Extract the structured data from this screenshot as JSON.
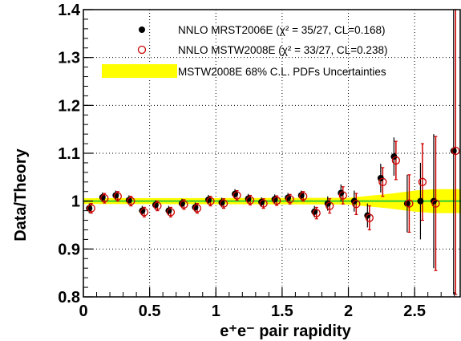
{
  "chart_data": {
    "type": "scatter",
    "xlabel": "e⁺e⁻ pair rapidity",
    "ylabel": "Data/Theory",
    "xlim": [
      0,
      2.85
    ],
    "ylim": [
      0.8,
      1.4
    ],
    "grid": true,
    "legend_position": "top-right",
    "x_ticks": [
      0,
      0.5,
      1,
      1.5,
      2,
      2.5
    ],
    "x_tick_labels": [
      "0",
      "0.5",
      "1",
      "1.5",
      "2",
      "2.5"
    ],
    "y_ticks": [
      0.8,
      0.9,
      1,
      1.1,
      1.2,
      1.3,
      1.4
    ],
    "y_tick_labels": [
      "0.8",
      "0.9",
      "1",
      "1.1",
      "1.2",
      "1.3",
      "1.4"
    ],
    "series": [
      {
        "name": "NNLO MRST2006E (χ² = 35/27, CL=0.168)",
        "marker": "filled-circle",
        "color": "#000000",
        "x": [
          0.05,
          0.15,
          0.25,
          0.35,
          0.45,
          0.55,
          0.65,
          0.75,
          0.85,
          0.95,
          1.05,
          1.15,
          1.25,
          1.35,
          1.45,
          1.55,
          1.65,
          1.75,
          1.85,
          1.95,
          2.05,
          2.15,
          2.25,
          2.35,
          2.45,
          2.55,
          2.65,
          2.8
        ],
        "y": [
          0.985,
          1.008,
          1.012,
          1.002,
          0.98,
          0.992,
          0.98,
          0.995,
          0.987,
          1.003,
          0.997,
          1.015,
          1.005,
          0.998,
          1.004,
          1.007,
          1.012,
          0.978,
          0.995,
          1.017,
          1.0,
          0.97,
          1.048,
          1.093,
          0.995,
          1.0,
          1.0,
          1.105
        ],
        "err": [
          0.01,
          0.01,
          0.01,
          0.01,
          0.01,
          0.01,
          0.01,
          0.01,
          0.01,
          0.01,
          0.01,
          0.01,
          0.01,
          0.01,
          0.01,
          0.01,
          0.01,
          0.012,
          0.015,
          0.018,
          0.022,
          0.025,
          0.03,
          0.04,
          0.06,
          0.08,
          0.14,
          0.3
        ]
      },
      {
        "name": "NNLO MSTW2008E (χ² = 33/27, CL=0.238)",
        "marker": "open-circle",
        "color": "#cc0000",
        "x": [
          0.05,
          0.15,
          0.25,
          0.35,
          0.45,
          0.55,
          0.65,
          0.75,
          0.85,
          0.95,
          1.05,
          1.15,
          1.25,
          1.35,
          1.45,
          1.55,
          1.65,
          1.75,
          1.85,
          1.95,
          2.05,
          2.15,
          2.25,
          2.35,
          2.45,
          2.55,
          2.65,
          2.8
        ],
        "y": [
          0.985,
          1.006,
          1.01,
          1.0,
          0.977,
          0.99,
          0.977,
          0.993,
          0.985,
          1.0,
          0.995,
          1.012,
          1.002,
          0.995,
          1.001,
          1.004,
          1.01,
          0.975,
          0.99,
          1.012,
          0.994,
          0.965,
          1.04,
          1.085,
          0.995,
          1.04,
          0.995,
          1.105
        ],
        "err": [
          0.01,
          0.01,
          0.01,
          0.01,
          0.01,
          0.01,
          0.01,
          0.01,
          0.01,
          0.01,
          0.01,
          0.01,
          0.01,
          0.01,
          0.01,
          0.01,
          0.01,
          0.012,
          0.015,
          0.018,
          0.022,
          0.025,
          0.03,
          0.04,
          0.06,
          0.08,
          0.14,
          0.3
        ]
      },
      {
        "name": "MSTW2008E 68% C.L. PDFs Uncertainties",
        "type": "band",
        "color": "#ffff00",
        "x": [
          0,
          2.0,
          2.3,
          2.5,
          2.65,
          2.85
        ],
        "lower": [
          0.994,
          0.993,
          0.985,
          0.978,
          0.975,
          0.975
        ],
        "upper": [
          1.006,
          1.007,
          1.015,
          1.022,
          1.025,
          1.025
        ]
      }
    ],
    "central_line_color": "#33cc33",
    "reference_value": 1.0
  }
}
